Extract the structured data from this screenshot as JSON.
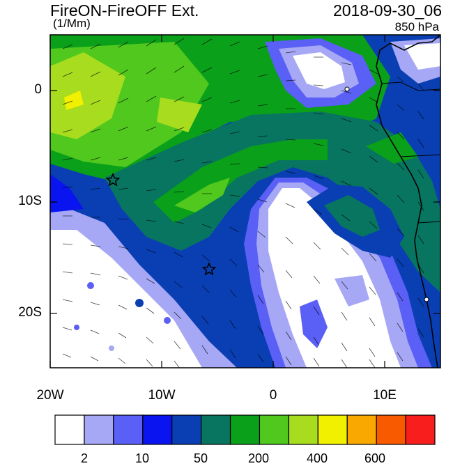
{
  "header": {
    "title": "FireON-FireOFF Ext.",
    "units": "(1/Mm)",
    "datetime": "2018-09-30_06",
    "level": "850 hPa"
  },
  "map": {
    "x_ticks": [
      "20W",
      "10W",
      "0",
      "10E"
    ],
    "y_ticks": [
      "0",
      "10S",
      "20S"
    ],
    "lon_range": [
      -20,
      15
    ],
    "lat_range": [
      -25,
      5
    ],
    "markers": [
      {
        "type": "star",
        "lon": -14.4,
        "lat": -8.0
      },
      {
        "type": "star",
        "lon": -5.7,
        "lat": -16.0
      }
    ]
  },
  "colorbar": {
    "colors": [
      "#ffffff",
      "#a6a8f5",
      "#5a5ff5",
      "#0a14f0",
      "#0a3fb3",
      "#087560",
      "#0aa01a",
      "#50c81e",
      "#a8dc1e",
      "#f0f000",
      "#f8a800",
      "#f85a00",
      "#f81e1e"
    ],
    "labels": [
      "2",
      "10",
      "50",
      "200",
      "400",
      "600"
    ]
  }
}
